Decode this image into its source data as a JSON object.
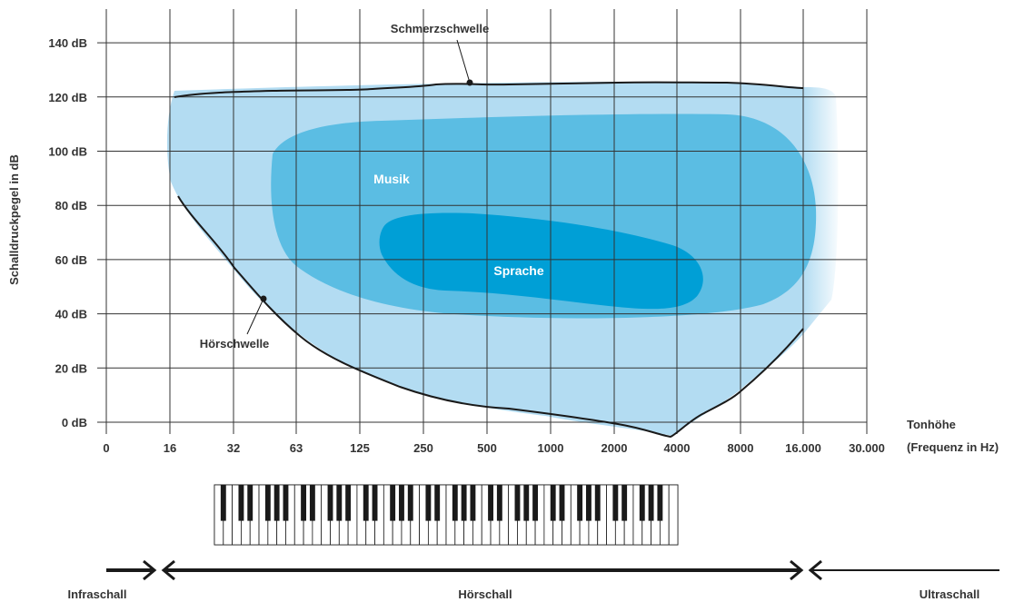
{
  "axes": {
    "y_label": "Schalldruckpegel in dB",
    "x_label_line1": "Tonhöhe",
    "x_label_line2": "(Frequenz in Hz)",
    "y_ticks": [
      "0 dB",
      "20 dB",
      "40 dB",
      "60 dB",
      "80 dB",
      "100 dB",
      "120 dB",
      "140 dB"
    ],
    "x_ticks": [
      "0",
      "16",
      "32",
      "63",
      "125",
      "250",
      "500",
      "1000",
      "2000",
      "4000",
      "8000",
      "16.000",
      "30.000"
    ]
  },
  "regions": {
    "music": "Musik",
    "speech": "Sprache"
  },
  "annotations": {
    "pain_threshold": "Schmerzschwelle",
    "hearing_threshold": "Hörschwelle"
  },
  "ranges": {
    "infra": "Infraschall",
    "audible": "Hörschall",
    "ultra": "Ultraschall"
  },
  "colors": {
    "audible_area": "#b3dcf2",
    "music_area": "#5bbde3",
    "speech_area": "#009fd6",
    "grid": "#333333",
    "curve": "#1a1a1a",
    "text": "#333333"
  },
  "piano": {
    "white_keys": 52
  }
}
